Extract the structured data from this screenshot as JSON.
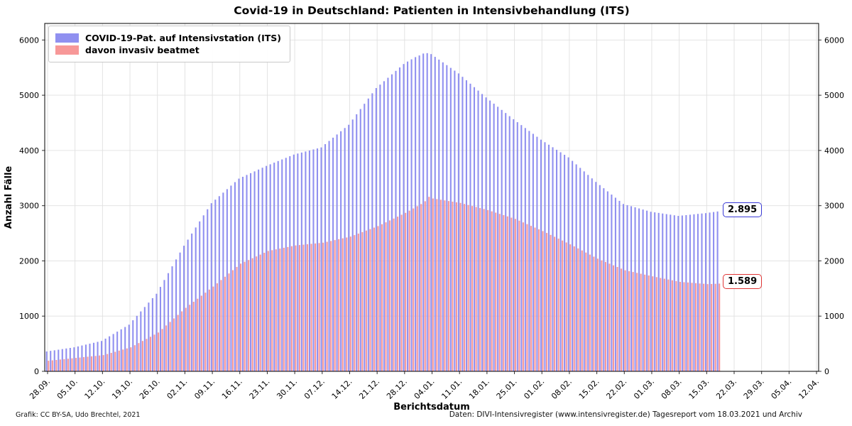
{
  "footer": {
    "credit": "Grafik: CC BY-SA, Udo Brechtel, 2021",
    "source": "Daten: DIVI-Intensivregister (www.intensivregister.de) Tagesreport vom 18.03.2021 und Archiv"
  },
  "chart_data": {
    "type": "bar",
    "title": "Covid-19 in Deutschland: Patienten in Intensivbehandlung (ITS)",
    "xlabel": "Berichtsdatum",
    "ylabel": "Anzahl Fälle",
    "ylim": [
      0,
      6300
    ],
    "yticks": [
      0,
      1000,
      2000,
      3000,
      4000,
      5000,
      6000
    ],
    "grid": true,
    "legend_position": "upper-left",
    "x_tick_labels": [
      "28.09.",
      "05.10.",
      "12.10.",
      "19.10.",
      "26.10.",
      "02.11.",
      "09.11.",
      "16.11.",
      "23.11.",
      "30.11.",
      "07.12.",
      "14.12.",
      "21.12.",
      "28.12.",
      "04.01.",
      "11.01.",
      "18.01.",
      "25.01.",
      "01.02.",
      "08.02.",
      "15.02.",
      "22.02.",
      "01.03.",
      "08.03.",
      "15.03.",
      "22.03.",
      "29.03.",
      "05.04.",
      "12.04."
    ],
    "days_per_tick": 7,
    "series": [
      {
        "name": "COVID-19-Pat. auf Intensivstation (ITS)",
        "color": "#9090f0",
        "values": [
          360,
          371,
          381,
          392,
          403,
          414,
          424,
          435,
          451,
          468,
          484,
          501,
          517,
          534,
          550,
          592,
          634,
          676,
          719,
          761,
          803,
          845,
          925,
          1005,
          1085,
          1165,
          1245,
          1325,
          1405,
          1529,
          1654,
          1778,
          1902,
          2026,
          2151,
          2275,
          2385,
          2495,
          2605,
          2715,
          2825,
          2935,
          3045,
          3109,
          3172,
          3236,
          3299,
          3363,
          3426,
          3490,
          3523,
          3556,
          3589,
          3621,
          3654,
          3687,
          3720,
          3749,
          3779,
          3808,
          3837,
          3866,
          3896,
          3925,
          3944,
          3962,
          3981,
          3999,
          4018,
          4036,
          4055,
          4114,
          4172,
          4231,
          4289,
          4348,
          4406,
          4465,
          4560,
          4655,
          4750,
          4845,
          4940,
          5035,
          5130,
          5192,
          5254,
          5316,
          5378,
          5441,
          5503,
          5565,
          5610,
          5650,
          5690,
          5720,
          5755,
          5762,
          5745,
          5695,
          5645,
          5595,
          5545,
          5495,
          5445,
          5395,
          5333,
          5271,
          5209,
          5146,
          5084,
          5022,
          4960,
          4904,
          4847,
          4791,
          4734,
          4678,
          4621,
          4565,
          4512,
          4459,
          4406,
          4353,
          4301,
          4248,
          4195,
          4149,
          4104,
          4058,
          4012,
          3967,
          3921,
          3875,
          3811,
          3748,
          3684,
          3621,
          3557,
          3494,
          3430,
          3373,
          3316,
          3259,
          3201,
          3144,
          3087,
          3030,
          3010,
          2990,
          2970,
          2950,
          2930,
          2910,
          2890,
          2879,
          2869,
          2858,
          2847,
          2837,
          2826,
          2815,
          2822,
          2829,
          2836,
          2844,
          2851,
          2858,
          2865,
          2875,
          2885,
          2895
        ]
      },
      {
        "name": "davon invasiv beatmet",
        "color": "#f79898",
        "values": [
          192,
          199,
          206,
          214,
          221,
          228,
          236,
          243,
          250,
          258,
          265,
          272,
          279,
          287,
          294,
          314,
          334,
          354,
          375,
          395,
          415,
          435,
          473,
          512,
          550,
          588,
          626,
          665,
          703,
          767,
          831,
          895,
          958,
          1022,
          1086,
          1150,
          1205,
          1260,
          1315,
          1370,
          1425,
          1480,
          1535,
          1594,
          1654,
          1713,
          1772,
          1832,
          1891,
          1950,
          1983,
          2016,
          2049,
          2081,
          2114,
          2147,
          2180,
          2194,
          2209,
          2223,
          2237,
          2251,
          2266,
          2280,
          2287,
          2294,
          2301,
          2309,
          2316,
          2323,
          2330,
          2346,
          2361,
          2377,
          2393,
          2409,
          2424,
          2440,
          2467,
          2494,
          2521,
          2549,
          2576,
          2603,
          2630,
          2664,
          2699,
          2733,
          2767,
          2801,
          2836,
          2870,
          2910,
          2950,
          2990,
          3030,
          3080,
          3160,
          3130,
          3119,
          3107,
          3096,
          3084,
          3073,
          3061,
          3050,
          3031,
          3013,
          2994,
          2976,
          2957,
          2939,
          2920,
          2897,
          2874,
          2851,
          2829,
          2806,
          2783,
          2760,
          2729,
          2697,
          2666,
          2634,
          2603,
          2571,
          2540,
          2506,
          2471,
          2437,
          2403,
          2369,
          2334,
          2300,
          2263,
          2226,
          2189,
          2151,
          2114,
          2077,
          2040,
          2010,
          1980,
          1950,
          1920,
          1890,
          1860,
          1830,
          1814,
          1799,
          1783,
          1767,
          1751,
          1736,
          1720,
          1706,
          1691,
          1677,
          1663,
          1649,
          1634,
          1620,
          1614,
          1609,
          1603,
          1597,
          1591,
          1586,
          1580,
          1582,
          1585,
          1589
        ]
      }
    ],
    "annotations": [
      {
        "label": "2.895",
        "value": 2895,
        "border_color": "#3a3ad6"
      },
      {
        "label": "1.589",
        "value": 1589,
        "border_color": "#e03535"
      }
    ]
  }
}
